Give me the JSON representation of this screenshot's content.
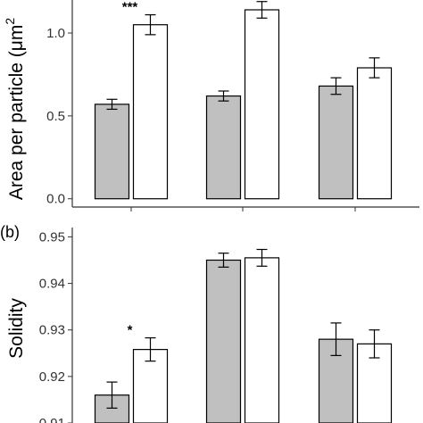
{
  "chart_data": [
    {
      "type": "bar",
      "panel_label": "",
      "ylabel": "Area per particle (μm²)",
      "ylabel_visible": "Area per particle (μm",
      "ylabel_sup": "2",
      "ylim": [
        -0.05,
        1.28
      ],
      "yticks": [
        0.0,
        0.5,
        1.0
      ],
      "ytick_labels": [
        "0.0",
        "0.5",
        "1.0"
      ],
      "categories": [
        "",
        "",
        ""
      ],
      "grid": false,
      "series": [
        {
          "fill": "#c0c0c0",
          "values": [
            0.57,
            0.62,
            0.68
          ],
          "errors": [
            0.03,
            0.03,
            0.05
          ]
        },
        {
          "fill": "#ffffff",
          "values": [
            1.05,
            1.14,
            0.79
          ],
          "errors": [
            0.06,
            0.05,
            0.06
          ]
        }
      ],
      "annotations": [
        {
          "group": 0,
          "text": "***"
        },
        {
          "group": 1,
          "text": "***"
        }
      ]
    },
    {
      "type": "bar",
      "panel_label": "(b)",
      "ylabel": "Solidity",
      "ylim": [
        0.91,
        0.952
      ],
      "yticks": [
        0.91,
        0.92,
        0.93,
        0.94,
        0.95
      ],
      "ytick_labels": [
        "0.91",
        "0.92",
        "0.93",
        "0.94",
        "0.95"
      ],
      "categories": [
        "",
        "",
        ""
      ],
      "grid": false,
      "series": [
        {
          "fill": "#c0c0c0",
          "values": [
            0.916,
            0.945,
            0.928
          ],
          "errors": [
            0.0028,
            0.0015,
            0.0035
          ]
        },
        {
          "fill": "#ffffff",
          "values": [
            0.9258,
            0.9455,
            0.927
          ],
          "errors": [
            0.0025,
            0.0018,
            0.003
          ]
        }
      ],
      "annotations": [
        {
          "group": 0,
          "text": "*"
        }
      ]
    }
  ],
  "colors": {
    "axis": "#333333",
    "bar_stroke": "#000000",
    "error_bar": "#000000"
  }
}
